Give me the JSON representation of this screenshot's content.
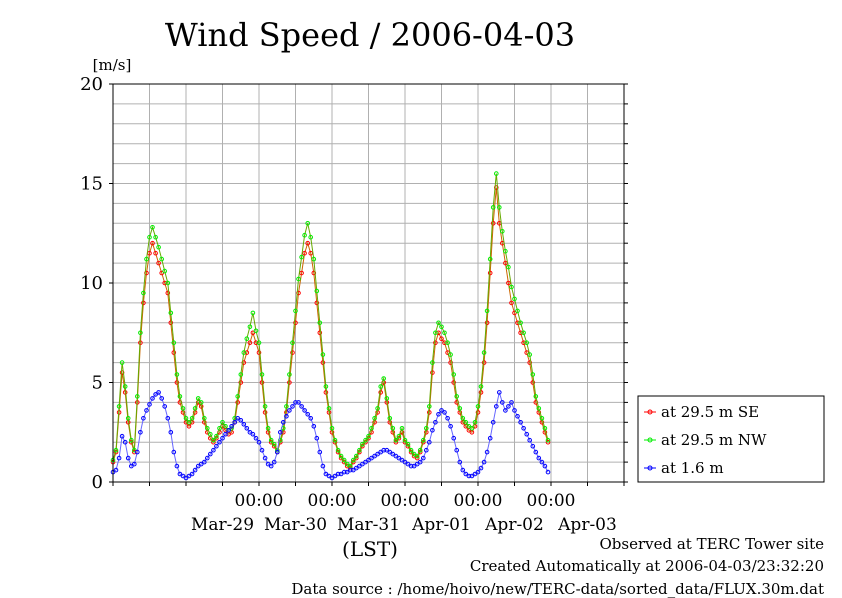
{
  "chart_data": {
    "type": "line",
    "title": "Wind Speed / 2006-04-03",
    "ylabel": "[m/s]",
    "xlabel": "(LST)",
    "ylim": [
      0,
      20
    ],
    "yticks": [
      "0",
      "5",
      "10",
      "15",
      "20"
    ],
    "xticks_time": [
      "00:00",
      "00:00",
      "00:00",
      "00:00",
      "00:00"
    ],
    "xticks_date": [
      "Mar-29",
      "Mar-30",
      "Mar-31",
      "Apr-01",
      "Apr-02",
      "Apr-03"
    ],
    "grid": true,
    "legend_position": "right",
    "x_start": "2006-03-28 00:00",
    "x_end": "2006-04-04 00:00",
    "x_step_hours": 1,
    "series": [
      {
        "name": "at 29.5 m SE",
        "color": "#ff0000",
        "values": [
          1.0,
          1.5,
          3.5,
          5.5,
          4.5,
          3.0,
          2.0,
          1.5,
          4.0,
          7.0,
          9.0,
          10.5,
          11.5,
          12.0,
          11.5,
          11.0,
          10.5,
          10.0,
          9.5,
          8.0,
          6.5,
          5.0,
          4.0,
          3.5,
          3.0,
          2.8,
          3.0,
          3.5,
          4.0,
          3.8,
          3.0,
          2.5,
          2.2,
          2.0,
          2.2,
          2.5,
          2.8,
          2.6,
          2.4,
          2.5,
          3.0,
          4.0,
          5.0,
          6.0,
          6.5,
          7.0,
          7.5,
          7.0,
          6.5,
          5.0,
          3.5,
          2.5,
          2.0,
          1.8,
          1.5,
          2.0,
          2.5,
          3.5,
          5.0,
          6.5,
          8.0,
          9.5,
          10.5,
          11.5,
          12.0,
          11.5,
          10.5,
          9.0,
          7.5,
          6.0,
          4.5,
          3.5,
          2.5,
          2.0,
          1.5,
          1.2,
          1.0,
          0.8,
          0.7,
          1.0,
          1.2,
          1.5,
          1.8,
          2.0,
          2.2,
          2.5,
          3.0,
          3.5,
          4.5,
          5.0,
          4.0,
          3.0,
          2.5,
          2.0,
          2.2,
          2.5,
          2.0,
          1.8,
          1.5,
          1.3,
          1.2,
          1.5,
          2.0,
          2.5,
          3.5,
          5.5,
          7.0,
          7.5,
          7.2,
          7.0,
          6.5,
          6.0,
          5.0,
          4.0,
          3.5,
          3.0,
          2.8,
          2.6,
          2.5,
          2.8,
          3.5,
          4.5,
          6.0,
          8.0,
          10.5,
          13.0,
          14.8,
          13.0,
          12.0,
          11.0,
          10.0,
          9.0,
          8.5,
          8.0,
          7.5,
          7.0,
          6.5,
          6.0,
          5.0,
          4.0,
          3.5,
          3.0,
          2.5,
          2.0
        ]
      },
      {
        "name": "at 29.5 m NW",
        "color": "#00ee00",
        "values": [
          1.1,
          1.6,
          3.8,
          6.0,
          4.8,
          3.2,
          2.1,
          1.6,
          4.3,
          7.5,
          9.5,
          11.2,
          12.3,
          12.8,
          12.3,
          11.8,
          11.2,
          10.6,
          10.0,
          8.5,
          7.0,
          5.4,
          4.3,
          3.7,
          3.2,
          3.0,
          3.2,
          3.7,
          4.2,
          4.0,
          3.2,
          2.7,
          2.4,
          2.1,
          2.3,
          2.7,
          3.0,
          2.8,
          2.6,
          2.7,
          3.2,
          4.3,
          5.4,
          6.5,
          7.2,
          7.8,
          8.5,
          7.6,
          7.0,
          5.4,
          3.8,
          2.7,
          2.1,
          1.9,
          1.6,
          2.1,
          2.7,
          3.8,
          5.4,
          7.0,
          8.6,
          10.2,
          11.3,
          12.4,
          13.0,
          12.3,
          11.2,
          9.6,
          8.0,
          6.4,
          4.8,
          3.7,
          2.7,
          2.1,
          1.6,
          1.3,
          1.1,
          0.9,
          0.8,
          1.1,
          1.3,
          1.6,
          1.9,
          2.1,
          2.3,
          2.7,
          3.2,
          3.7,
          4.8,
          5.2,
          4.2,
          3.2,
          2.7,
          2.1,
          2.3,
          2.7,
          2.1,
          1.9,
          1.6,
          1.4,
          1.3,
          1.6,
          2.1,
          2.7,
          3.8,
          6.0,
          7.5,
          8.0,
          7.8,
          7.5,
          7.0,
          6.4,
          5.4,
          4.3,
          3.7,
          3.2,
          3.0,
          2.8,
          2.7,
          3.0,
          3.8,
          4.8,
          6.5,
          8.6,
          11.2,
          13.8,
          15.5,
          13.8,
          12.6,
          11.6,
          10.8,
          9.8,
          9.2,
          8.6,
          8.0,
          7.5,
          7.0,
          6.4,
          5.4,
          4.3,
          3.7,
          3.2,
          2.7,
          2.1
        ]
      },
      {
        "name": "at 1.6 m",
        "color": "#0000ff",
        "values": [
          0.5,
          0.6,
          1.2,
          2.3,
          2.0,
          1.2,
          0.8,
          0.9,
          1.5,
          2.5,
          3.2,
          3.6,
          3.9,
          4.2,
          4.4,
          4.5,
          4.2,
          3.8,
          3.2,
          2.5,
          1.5,
          0.8,
          0.4,
          0.3,
          0.2,
          0.3,
          0.4,
          0.6,
          0.8,
          0.9,
          1.0,
          1.2,
          1.4,
          1.6,
          1.8,
          2.0,
          2.2,
          2.4,
          2.6,
          2.8,
          3.0,
          3.2,
          3.1,
          2.9,
          2.7,
          2.5,
          2.4,
          2.2,
          2.0,
          1.6,
          1.2,
          0.9,
          0.8,
          1.0,
          1.5,
          2.5,
          3.0,
          3.3,
          3.6,
          3.8,
          4.0,
          4.0,
          3.8,
          3.6,
          3.4,
          3.2,
          2.8,
          2.2,
          1.5,
          0.8,
          0.4,
          0.3,
          0.2,
          0.3,
          0.4,
          0.4,
          0.5,
          0.5,
          0.6,
          0.6,
          0.7,
          0.8,
          0.9,
          1.0,
          1.1,
          1.2,
          1.3,
          1.4,
          1.5,
          1.6,
          1.6,
          1.5,
          1.4,
          1.3,
          1.2,
          1.1,
          1.0,
          0.9,
          0.8,
          0.8,
          0.9,
          1.0,
          1.2,
          1.6,
          2.0,
          2.6,
          3.0,
          3.4,
          3.6,
          3.5,
          3.2,
          2.8,
          2.2,
          1.6,
          1.0,
          0.6,
          0.4,
          0.3,
          0.3,
          0.4,
          0.5,
          0.7,
          1.0,
          1.5,
          2.2,
          3.0,
          3.8,
          4.5,
          4.0,
          3.6,
          3.8,
          4.0,
          3.6,
          3.3,
          3.0,
          2.7,
          2.4,
          2.1,
          1.8,
          1.5,
          1.2,
          1.0,
          0.8,
          0.5
        ]
      }
    ]
  },
  "footer": {
    "site": "Observed at TERC Tower site",
    "created": "Created Automatically at 2006-04-03/23:32:20",
    "source": "Data source : /home/hoivo/new/TERC-data/sorted_data/FLUX.30m.dat"
  }
}
